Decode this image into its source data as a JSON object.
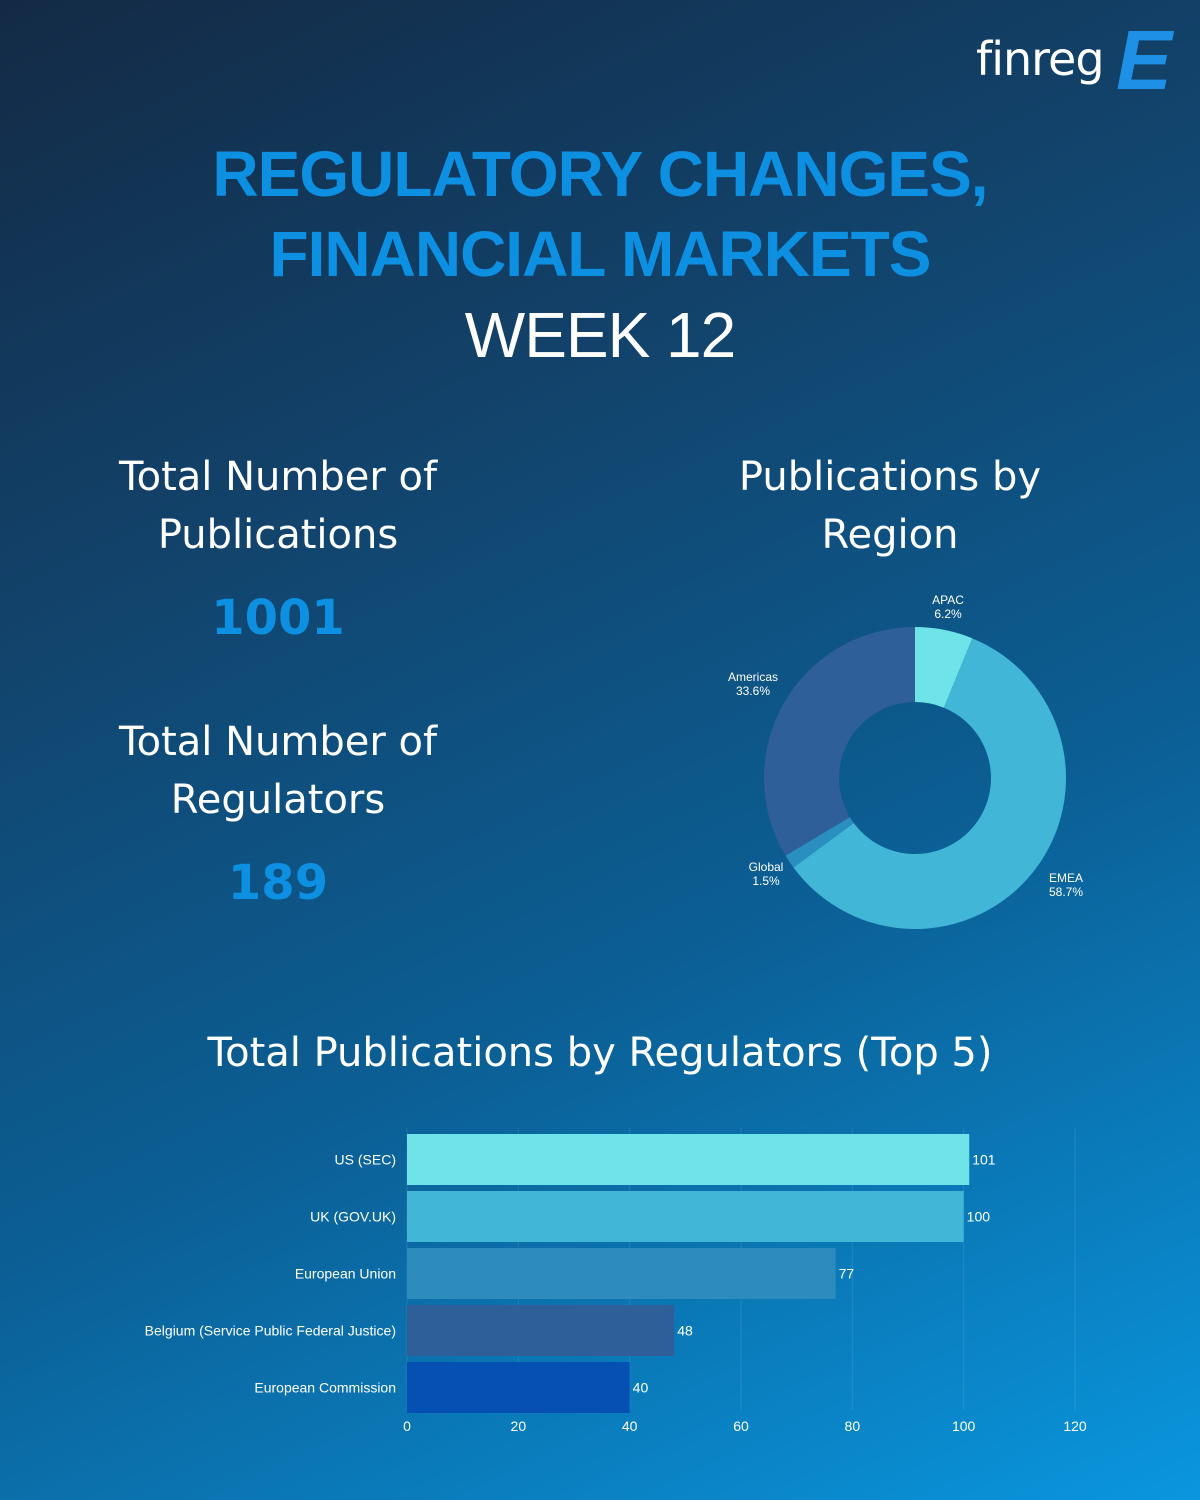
{
  "brand": {
    "wordmark": "finreg",
    "mark": "E",
    "mark_color": "#1e90e6"
  },
  "header": {
    "title_line1": "REGULATORY CHANGES,",
    "title_line2": "FINANCIAL MARKETS",
    "week": "WEEK 12"
  },
  "stats": {
    "publications_label_line1": "Total Number of",
    "publications_label_line2": "Publications",
    "publications_value": "1001",
    "regulators_label_line1": "Total Number of",
    "regulators_label_line2": "Regulators",
    "regulators_value": "189"
  },
  "donut": {
    "title_line1": "Publications by",
    "title_line2": "Region"
  },
  "bars": {
    "title": "Total Publications by Regulators (Top 5)"
  },
  "chart_data": [
    {
      "type": "pie",
      "style": "donut",
      "slices": [
        {
          "label": "APAC",
          "value": 6.2,
          "display": "6.2%",
          "color": "#6ee3e8"
        },
        {
          "label": "EMEA",
          "value": 58.7,
          "display": "58.7%",
          "color": "#41b6d6"
        },
        {
          "label": "Global",
          "value": 1.5,
          "display": "1.5%",
          "color": "#2a8ec0"
        },
        {
          "label": "Americas",
          "value": 33.6,
          "display": "33.6%",
          "color": "#2f5f98"
        }
      ]
    },
    {
      "type": "bar",
      "orientation": "horizontal",
      "categories": [
        "US (SEC)",
        "UK (GOV.UK)",
        "European Union",
        "Belgium (Service Public Federal Justice)",
        "European Commission"
      ],
      "values": [
        101,
        100,
        77,
        48,
        40
      ],
      "colors": [
        "#6ee3e8",
        "#41b6d6",
        "#2d8bbd",
        "#2f5f98",
        "#0650b4"
      ],
      "xlim": [
        0,
        120
      ],
      "xticks": [
        0,
        20,
        40,
        60,
        80,
        100,
        120
      ],
      "grid": true
    }
  ]
}
